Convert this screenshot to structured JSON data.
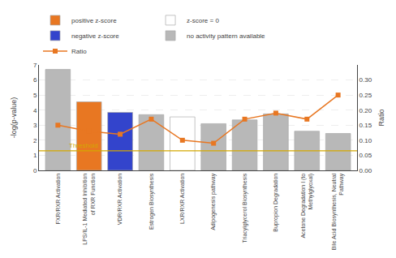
{
  "chart_data": {
    "type": "bar",
    "categories": [
      "FXR/RXR Activation",
      "LPS/IL-1 Mediated Inhibition\nof RXR Function",
      "VDR/RXR Activation",
      "Estrogen Biosynthesis",
      "LXR/RXR Activation",
      "Adipogenesis pathway",
      "Triacylglycerol Biosynthesis",
      "Bupropion Degradation",
      "Acetone Degradation I (to\nMethylglyoxal)",
      "Bile Acid Biosynthesis, Neutral\nPathway"
    ],
    "series": [
      {
        "name": "positive z-score",
        "color": "#e87722",
        "values": [
          null,
          4.55,
          null,
          null,
          null,
          null,
          null,
          null,
          null,
          null
        ]
      },
      {
        "name": "z-score = 0",
        "color": "#ffffff",
        "values": [
          null,
          null,
          null,
          null,
          3.55,
          null,
          null,
          null,
          null,
          null
        ]
      },
      {
        "name": "negative z-score",
        "color": "#3344cc",
        "values": [
          null,
          null,
          3.85,
          null,
          null,
          null,
          null,
          null,
          null,
          null
        ]
      },
      {
        "name": "no activity pattern available",
        "color": "#b8b8b8",
        "values": [
          6.7,
          null,
          null,
          3.7,
          null,
          3.1,
          3.35,
          3.75,
          2.6,
          2.45
        ]
      },
      {
        "name": "Ratio",
        "type": "line",
        "axis": "y2",
        "color": "#e87722",
        "marker": "square",
        "values": [
          0.15,
          0.13,
          0.12,
          0.17,
          0.1,
          0.09,
          0.17,
          0.19,
          0.17,
          0.25
        ]
      }
    ],
    "ylabel": "-log(p-value)",
    "y2label": "Ratio",
    "ylim": [
      0,
      7
    ],
    "yticks": [
      0,
      1,
      2,
      3,
      4,
      5,
      6,
      7
    ],
    "y2lim": [
      0,
      0.35
    ],
    "y2ticks": [
      {
        "value": 0,
        "label": "0.00"
      },
      {
        "value": 0.05,
        "label": "0.05"
      },
      {
        "value": 0.1,
        "label": "0.10"
      },
      {
        "value": 0.15,
        "label": "0.15"
      },
      {
        "value": 0.2,
        "label": "0.20"
      },
      {
        "value": 0.25,
        "label": "0.25"
      },
      {
        "value": 0.3,
        "label": "0.30"
      }
    ],
    "threshold": {
      "value": 1.3,
      "label": "Threshold",
      "color": "#d4a800"
    },
    "grid": true,
    "legend": "upper left"
  }
}
